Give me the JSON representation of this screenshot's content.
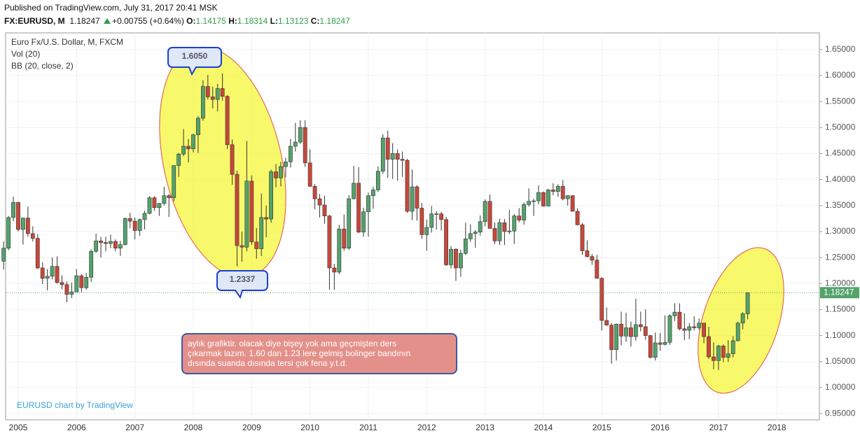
{
  "header": {
    "published": "Published on TradingView.com, July 31, 2017 20:41 MSK",
    "symbol": "FX:EURUSD, M",
    "change": "+0.00755 (+0.64%)",
    "ohlc_labels": [
      "O:",
      "H:",
      "L:",
      "C:"
    ]
  },
  "annotations": {
    "callouts": [
      "1.6050",
      "1.2337"
    ],
    "note": [
      "aylık grafiktir. olacak diye bişey yok ama geçmişten ders",
      "çıkarmak lazım. 1.60 dan 1.23 lere gelmiş bolinger bandının",
      " dısında suanda dısında tersi çok fena y.t.d."
    ]
  },
  "chart_data": {
    "type": "candlestick",
    "title": "Euro Fx/U.S. Dollar, M, FXCM",
    "indicators": [
      "Vol (20)",
      "BB (20, close, 2)"
    ],
    "watermark": "EURUSD chart by TradingView",
    "up_color": "#53a36b",
    "down_color": "#c8483a",
    "grid": true,
    "ylim": [
      0.938,
      1.682
    ],
    "yticks": [
      {
        "value": 0.95,
        "label": "0.95000"
      },
      {
        "value": 1.0,
        "label": "1.00000"
      },
      {
        "value": 1.05,
        "label": "1.05000"
      },
      {
        "value": 1.1,
        "label": "1.10000"
      },
      {
        "value": 1.15,
        "label": "1.15000"
      },
      {
        "value": 1.2,
        "label": "1.20000"
      },
      {
        "value": 1.25,
        "label": "1.25000"
      },
      {
        "value": 1.3,
        "label": "1.30000"
      },
      {
        "value": 1.35,
        "label": "1.35000"
      },
      {
        "value": 1.4,
        "label": "1.40000"
      },
      {
        "value": 1.45,
        "label": "1.45000"
      },
      {
        "value": 1.5,
        "label": "1.50000"
      },
      {
        "value": 1.55,
        "label": "1.55000"
      },
      {
        "value": 1.6,
        "label": "1.60000"
      },
      {
        "value": 1.65,
        "label": "1.65000"
      }
    ],
    "categories": [
      null,
      null,
      null,
      "2005",
      null,
      null,
      null,
      null,
      null,
      null,
      null,
      null,
      null,
      null,
      null,
      "2006",
      null,
      null,
      null,
      null,
      null,
      null,
      null,
      null,
      null,
      null,
      null,
      "2007",
      null,
      null,
      null,
      null,
      null,
      null,
      null,
      null,
      null,
      null,
      null,
      "2008",
      null,
      null,
      null,
      null,
      null,
      null,
      null,
      null,
      null,
      null,
      null,
      "2009",
      null,
      null,
      null,
      null,
      null,
      null,
      null,
      null,
      null,
      null,
      null,
      "2010",
      null,
      null,
      null,
      null,
      null,
      null,
      null,
      null,
      null,
      null,
      null,
      "2011",
      null,
      null,
      null,
      null,
      null,
      null,
      null,
      null,
      null,
      null,
      null,
      "2012",
      null,
      null,
      null,
      null,
      null,
      null,
      null,
      null,
      null,
      null,
      null,
      "2013",
      null,
      null,
      null,
      null,
      null,
      null,
      null,
      null,
      null,
      null,
      null,
      "2014",
      null,
      null,
      null,
      null,
      null,
      null,
      null,
      null,
      null,
      null,
      null,
      "2015",
      null,
      null,
      null,
      null,
      null,
      null,
      null,
      null,
      null,
      null,
      null,
      "2016",
      null,
      null,
      null,
      null,
      null,
      null,
      null,
      null,
      null,
      null,
      null,
      "2017",
      null,
      null,
      null,
      null,
      null,
      null,
      null,
      null,
      null,
      null,
      null,
      "2018"
    ],
    "candles": [
      [
        1.243,
        1.281,
        1.227,
        1.268
      ],
      [
        1.268,
        1.33,
        1.264,
        1.327
      ],
      [
        1.327,
        1.367,
        1.32,
        1.356
      ],
      [
        1.356,
        1.357,
        1.3,
        1.304
      ],
      [
        1.304,
        1.327,
        1.275,
        1.326
      ],
      [
        1.326,
        1.348,
        1.29,
        1.296
      ],
      [
        1.296,
        1.31,
        1.281,
        1.287
      ],
      [
        1.287,
        1.295,
        1.228,
        1.23
      ],
      [
        1.23,
        1.241,
        1.199,
        1.21
      ],
      [
        1.21,
        1.228,
        1.187,
        1.214
      ],
      [
        1.214,
        1.25,
        1.208,
        1.233
      ],
      [
        1.233,
        1.252,
        1.2,
        1.202
      ],
      [
        1.202,
        1.216,
        1.189,
        1.198
      ],
      [
        1.198,
        1.204,
        1.164,
        1.179
      ],
      [
        1.179,
        1.202,
        1.172,
        1.184
      ],
      [
        1.184,
        1.228,
        1.184,
        1.215
      ],
      [
        1.215,
        1.218,
        1.183,
        1.192
      ],
      [
        1.192,
        1.22,
        1.188,
        1.212
      ],
      [
        1.212,
        1.266,
        1.203,
        1.262
      ],
      [
        1.262,
        1.296,
        1.259,
        1.282
      ],
      [
        1.282,
        1.29,
        1.25,
        1.279
      ],
      [
        1.279,
        1.29,
        1.262,
        1.277
      ],
      [
        1.277,
        1.294,
        1.268,
        1.281
      ],
      [
        1.281,
        1.285,
        1.262,
        1.268
      ],
      [
        1.268,
        1.282,
        1.253,
        1.275
      ],
      [
        1.275,
        1.327,
        1.273,
        1.325
      ],
      [
        1.325,
        1.336,
        1.307,
        1.32
      ],
      [
        1.32,
        1.327,
        1.285,
        1.302
      ],
      [
        1.302,
        1.325,
        1.292,
        1.323
      ],
      [
        1.323,
        1.34,
        1.304,
        1.335
      ],
      [
        1.335,
        1.368,
        1.333,
        1.365
      ],
      [
        1.365,
        1.368,
        1.34,
        1.346
      ],
      [
        1.346,
        1.355,
        1.33,
        1.354
      ],
      [
        1.354,
        1.386,
        1.35,
        1.369
      ],
      [
        1.369,
        1.372,
        1.328,
        1.365
      ],
      [
        1.365,
        1.427,
        1.358,
        1.427
      ],
      [
        1.427,
        1.451,
        1.405,
        1.449
      ],
      [
        1.449,
        1.497,
        1.445,
        1.464
      ],
      [
        1.464,
        1.478,
        1.433,
        1.459
      ],
      [
        1.459,
        1.488,
        1.452,
        1.486
      ],
      [
        1.486,
        1.522,
        1.451,
        1.518
      ],
      [
        1.518,
        1.591,
        1.513,
        1.579
      ],
      [
        1.579,
        1.601,
        1.554,
        1.559
      ],
      [
        1.559,
        1.579,
        1.537,
        1.554
      ],
      [
        1.554,
        1.584,
        1.531,
        1.575
      ],
      [
        1.575,
        1.604,
        1.552,
        1.56
      ],
      [
        1.56,
        1.562,
        1.459,
        1.467
      ],
      [
        1.467,
        1.477,
        1.39,
        1.41
      ],
      [
        1.41,
        1.417,
        1.233,
        1.273
      ],
      [
        1.273,
        1.3,
        1.242,
        1.27
      ],
      [
        1.27,
        1.474,
        1.262,
        1.397
      ],
      [
        1.397,
        1.408,
        1.274,
        1.28
      ],
      [
        1.28,
        1.307,
        1.248,
        1.267
      ],
      [
        1.267,
        1.373,
        1.253,
        1.327
      ],
      [
        1.327,
        1.35,
        1.289,
        1.324
      ],
      [
        1.324,
        1.419,
        1.317,
        1.415
      ],
      [
        1.415,
        1.43,
        1.385,
        1.403
      ],
      [
        1.403,
        1.434,
        1.387,
        1.425
      ],
      [
        1.425,
        1.442,
        1.404,
        1.434
      ],
      [
        1.434,
        1.478,
        1.423,
        1.464
      ],
      [
        1.464,
        1.509,
        1.454,
        1.472
      ],
      [
        1.472,
        1.514,
        1.469,
        1.5
      ],
      [
        1.5,
        1.514,
        1.424,
        1.432
      ],
      [
        1.432,
        1.458,
        1.386,
        1.387
      ],
      [
        1.387,
        1.391,
        1.343,
        1.363
      ],
      [
        1.363,
        1.372,
        1.327,
        1.351
      ],
      [
        1.351,
        1.369,
        1.315,
        1.33
      ],
      [
        1.33,
        1.332,
        1.188,
        1.23
      ],
      [
        1.23,
        1.238,
        1.188,
        1.222
      ],
      [
        1.222,
        1.313,
        1.218,
        1.305
      ],
      [
        1.305,
        1.333,
        1.263,
        1.268
      ],
      [
        1.268,
        1.37,
        1.265,
        1.363
      ],
      [
        1.363,
        1.426,
        1.362,
        1.393
      ],
      [
        1.393,
        1.424,
        1.297,
        1.299
      ],
      [
        1.299,
        1.346,
        1.29,
        1.338
      ],
      [
        1.338,
        1.375,
        1.29,
        1.369
      ],
      [
        1.369,
        1.386,
        1.344,
        1.38
      ],
      [
        1.38,
        1.425,
        1.376,
        1.416
      ],
      [
        1.416,
        1.487,
        1.411,
        1.48
      ],
      [
        1.48,
        1.494,
        1.403,
        1.439
      ],
      [
        1.439,
        1.47,
        1.401,
        1.45
      ],
      [
        1.45,
        1.458,
        1.398,
        1.439
      ],
      [
        1.439,
        1.454,
        1.405,
        1.437
      ],
      [
        1.437,
        1.44,
        1.336,
        1.339
      ],
      [
        1.339,
        1.419,
        1.322,
        1.386
      ],
      [
        1.386,
        1.389,
        1.321,
        1.345
      ],
      [
        1.345,
        1.355,
        1.286,
        1.294
      ],
      [
        1.294,
        1.323,
        1.263,
        1.308
      ],
      [
        1.308,
        1.349,
        1.298,
        1.334
      ],
      [
        1.334,
        1.339,
        1.304,
        1.334
      ],
      [
        1.334,
        1.338,
        1.302,
        1.323
      ],
      [
        1.323,
        1.328,
        1.234,
        1.236
      ],
      [
        1.236,
        1.272,
        1.229,
        1.266
      ],
      [
        1.266,
        1.268,
        1.205,
        1.23
      ],
      [
        1.23,
        1.265,
        1.213,
        1.258
      ],
      [
        1.258,
        1.317,
        1.255,
        1.286
      ],
      [
        1.286,
        1.314,
        1.28,
        1.296
      ],
      [
        1.296,
        1.303,
        1.269,
        1.299
      ],
      [
        1.299,
        1.331,
        1.292,
        1.319
      ],
      [
        1.319,
        1.362,
        1.31,
        1.358
      ],
      [
        1.358,
        1.371,
        1.306,
        1.306
      ],
      [
        1.306,
        1.317,
        1.276,
        1.282
      ],
      [
        1.282,
        1.325,
        1.274,
        1.317
      ],
      [
        1.317,
        1.324,
        1.274,
        1.3
      ],
      [
        1.3,
        1.342,
        1.295,
        1.301
      ],
      [
        1.301,
        1.334,
        1.276,
        1.33
      ],
      [
        1.33,
        1.345,
        1.318,
        1.322
      ],
      [
        1.322,
        1.356,
        1.313,
        1.352
      ],
      [
        1.352,
        1.383,
        1.348,
        1.358
      ],
      [
        1.358,
        1.363,
        1.33,
        1.359
      ],
      [
        1.359,
        1.389,
        1.352,
        1.375
      ],
      [
        1.375,
        1.377,
        1.348,
        1.349
      ],
      [
        1.349,
        1.382,
        1.349,
        1.38
      ],
      [
        1.38,
        1.393,
        1.37,
        1.377
      ],
      [
        1.377,
        1.391,
        1.367,
        1.387
      ],
      [
        1.387,
        1.399,
        1.36,
        1.363
      ],
      [
        1.363,
        1.37,
        1.35,
        1.369
      ],
      [
        1.369,
        1.37,
        1.339,
        1.339
      ],
      [
        1.339,
        1.345,
        1.312,
        1.313
      ],
      [
        1.313,
        1.316,
        1.255,
        1.263
      ],
      [
        1.263,
        1.283,
        1.25,
        1.252
      ],
      [
        1.252,
        1.257,
        1.236,
        1.245
      ],
      [
        1.245,
        1.255,
        1.21,
        1.21
      ],
      [
        1.21,
        1.212,
        1.11,
        1.129
      ],
      [
        1.129,
        1.154,
        1.119,
        1.12
      ],
      [
        1.12,
        1.124,
        1.046,
        1.073
      ],
      [
        1.073,
        1.123,
        1.052,
        1.122
      ],
      [
        1.122,
        1.146,
        1.081,
        1.099
      ],
      [
        1.099,
        1.144,
        1.088,
        1.115
      ],
      [
        1.115,
        1.127,
        1.079,
        1.098
      ],
      [
        1.098,
        1.171,
        1.09,
        1.121
      ],
      [
        1.121,
        1.146,
        1.108,
        1.117
      ],
      [
        1.117,
        1.15,
        1.092,
        1.1
      ],
      [
        1.1,
        1.101,
        1.056,
        1.058
      ],
      [
        1.058,
        1.106,
        1.052,
        1.086
      ],
      [
        1.086,
        1.105,
        1.071,
        1.083
      ],
      [
        1.083,
        1.139,
        1.081,
        1.087
      ],
      [
        1.087,
        1.141,
        1.082,
        1.138
      ],
      [
        1.138,
        1.162,
        1.128,
        1.145
      ],
      [
        1.145,
        1.162,
        1.11,
        1.113
      ],
      [
        1.113,
        1.143,
        1.091,
        1.11
      ],
      [
        1.11,
        1.124,
        1.093,
        1.117
      ],
      [
        1.117,
        1.137,
        1.11,
        1.115
      ],
      [
        1.115,
        1.133,
        1.111,
        1.124
      ],
      [
        1.124,
        1.124,
        1.085,
        1.098
      ],
      [
        1.098,
        1.117,
        1.055,
        1.059
      ],
      [
        1.059,
        1.087,
        1.035,
        1.052
      ],
      [
        1.052,
        1.082,
        1.034,
        1.08
      ],
      [
        1.08,
        1.083,
        1.049,
        1.058
      ],
      [
        1.058,
        1.091,
        1.049,
        1.065
      ],
      [
        1.065,
        1.099,
        1.058,
        1.09
      ],
      [
        1.09,
        1.126,
        1.089,
        1.124
      ],
      [
        1.124,
        1.145,
        1.112,
        1.142
      ],
      [
        1.14175,
        1.18314,
        1.13123,
        1.18247
      ],
      null,
      null,
      null,
      null,
      null,
      null
    ]
  }
}
